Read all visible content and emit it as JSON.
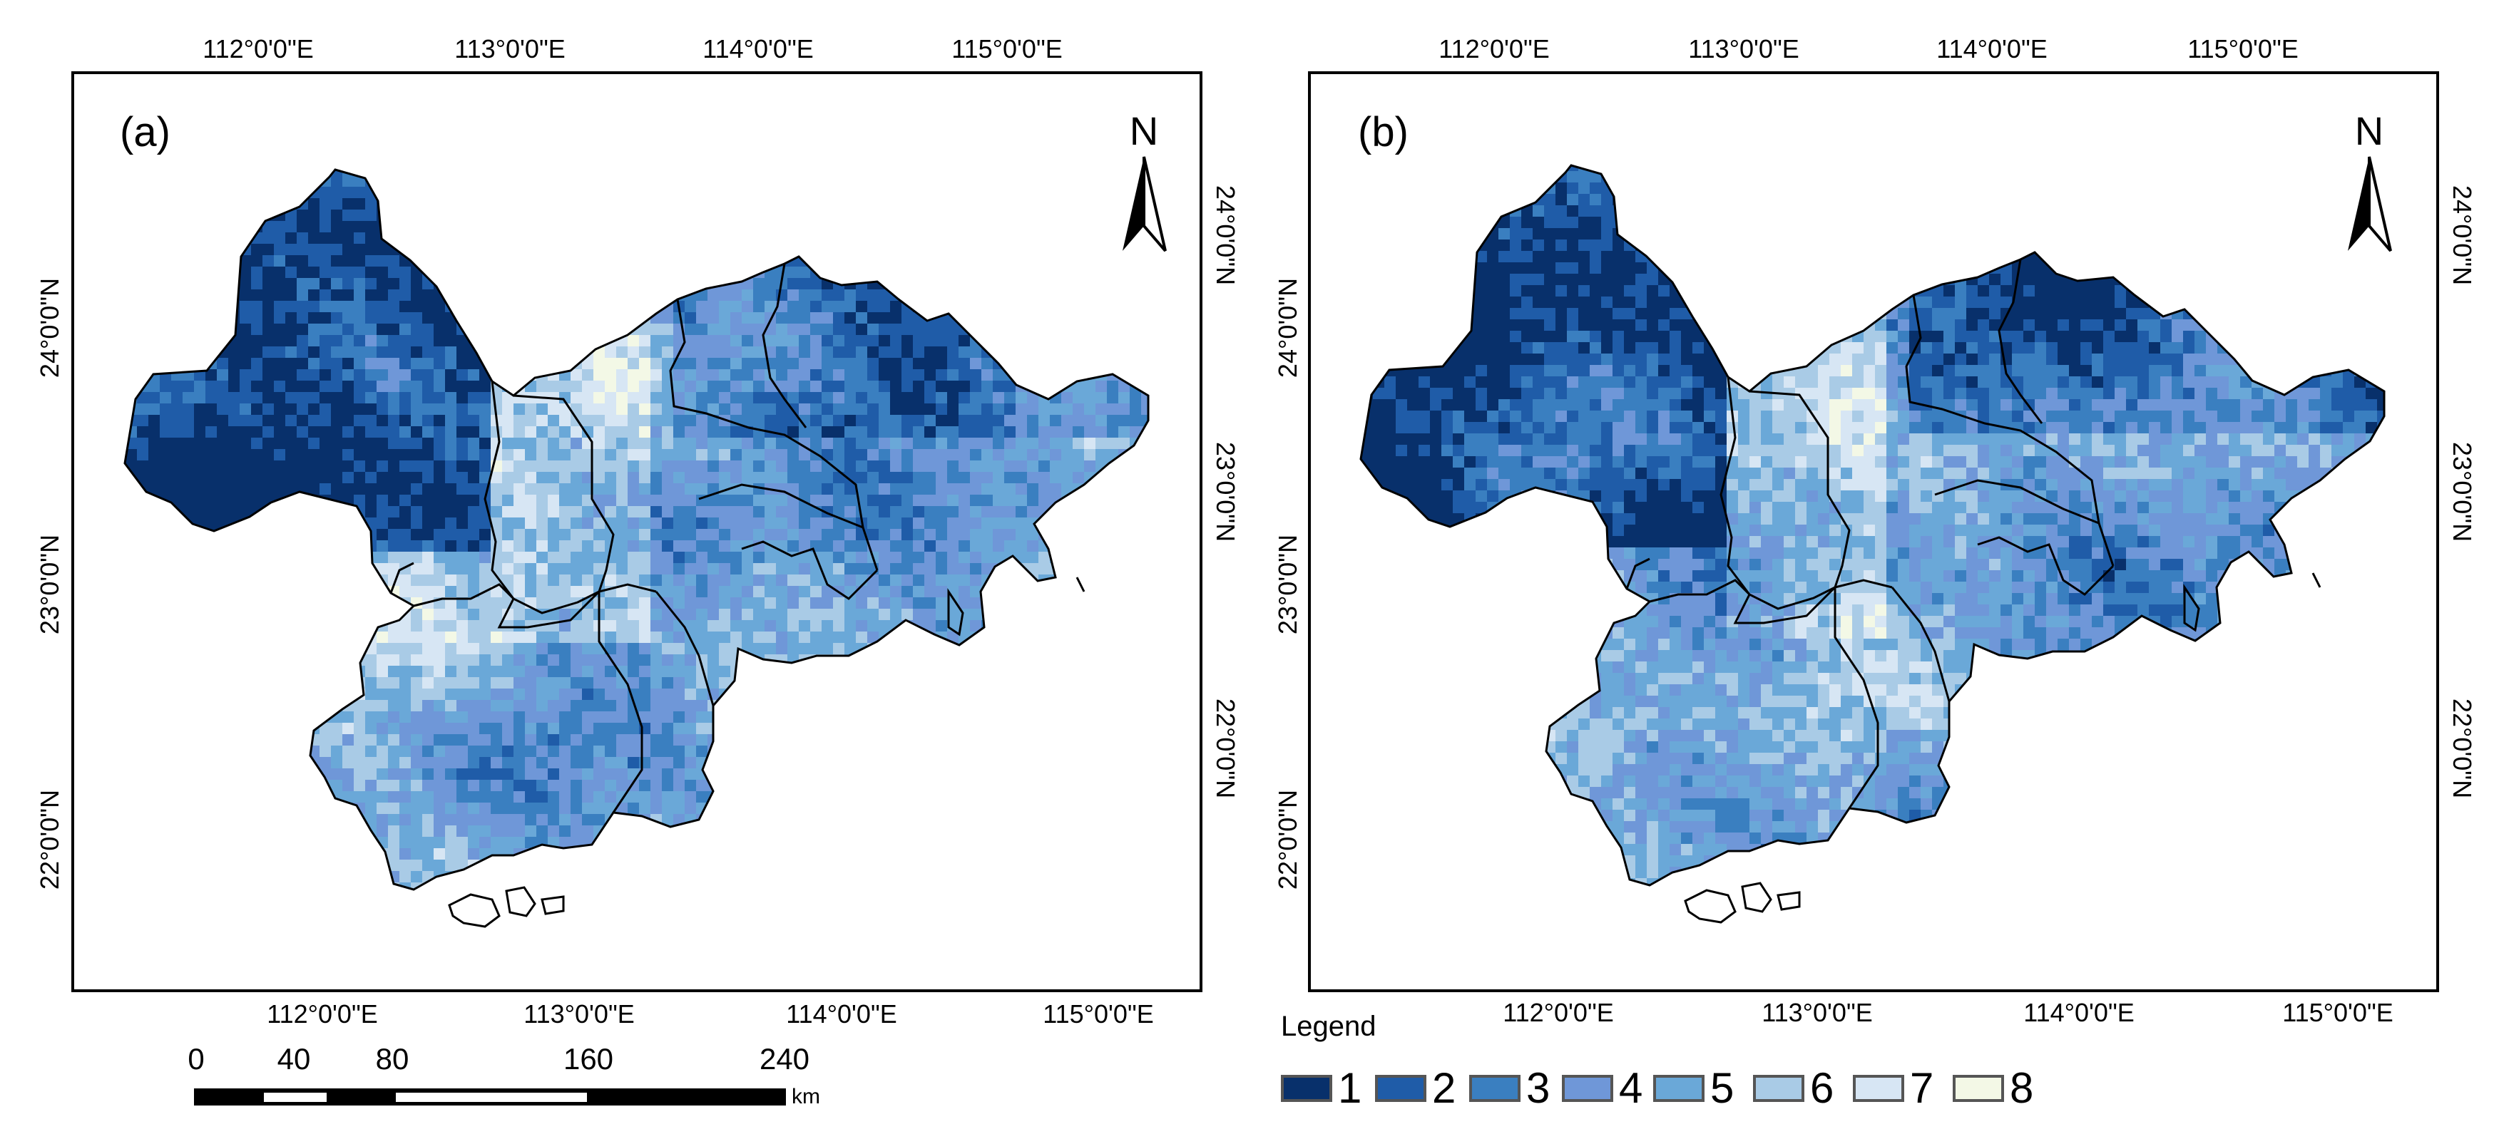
{
  "panel_a": {
    "label": "(a)",
    "north_label": "N",
    "top_lon_labels": [
      "112°0'0\"E",
      "113°0'0\"E",
      "114°0'0\"E",
      "115°0'0\"E"
    ],
    "bottom_lon_labels": [
      "112°0'0\"E",
      "113°0'0\"E",
      "114°0'0\"E",
      "115°0'0\"E"
    ],
    "left_lat_labels": [
      "24°0'0\"N",
      "23°0'0\"N",
      "22°0'0\"N"
    ],
    "right_lat_labels": [
      "24°0'0\"N",
      "23°0'0\"N",
      "22°0'0\"N"
    ]
  },
  "panel_b": {
    "label": "(b)",
    "north_label": "N",
    "top_lon_labels": [
      "112°0'0\"E",
      "113°0'0\"E",
      "114°0'0\"E",
      "115°0'0\"E"
    ],
    "bottom_lon_labels": [
      "112°0'0\"E",
      "113°0'0\"E",
      "114°0'0\"E",
      "115°0'0\"E"
    ],
    "left_lat_labels": [
      "24°0'0\"N",
      "23°0'0\"N",
      "22°0'0\"N"
    ],
    "right_lat_labels": [
      "24°0'0\"N",
      "23°0'0\"N",
      "22°0'0\"N"
    ]
  },
  "scale_bar": {
    "ticks": [
      "0",
      "40",
      "80",
      "160",
      "240"
    ],
    "unit": "km"
  },
  "legend": {
    "title": "Legend",
    "classes": [
      {
        "label": "1",
        "color": "#08306b"
      },
      {
        "label": "2",
        "color": "#1f5ca8"
      },
      {
        "label": "3",
        "color": "#3a7fc0"
      },
      {
        "label": "4",
        "color": "#6f97d8"
      },
      {
        "label": "5",
        "color": "#6aa8d8"
      },
      {
        "label": "6",
        "color": "#a9cbe6"
      },
      {
        "label": "7",
        "color": "#d7e6f4"
      },
      {
        "label": "8",
        "color": "#f3f8e6"
      }
    ]
  }
}
